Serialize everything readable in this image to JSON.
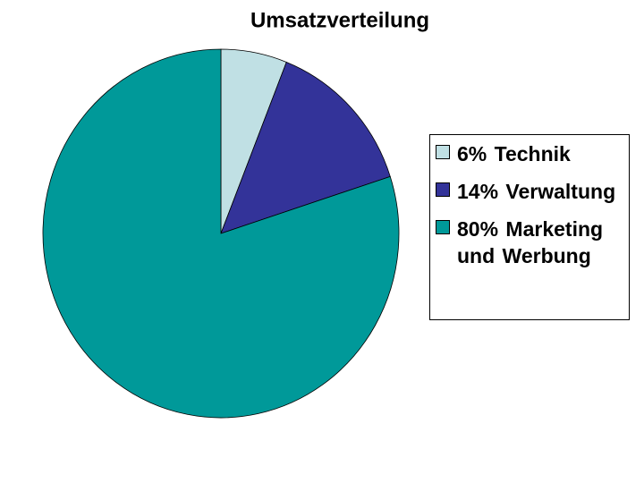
{
  "chart_data": {
    "type": "pie",
    "title": "Umsatzverteilung",
    "categories": [
      "6% Technik",
      "14% Verwaltung",
      "80% Marketing und Werbung"
    ],
    "values": [
      6,
      14,
      80
    ],
    "colors": [
      "#c0e0e4",
      "#333399",
      "#009999"
    ],
    "legend": "right"
  }
}
